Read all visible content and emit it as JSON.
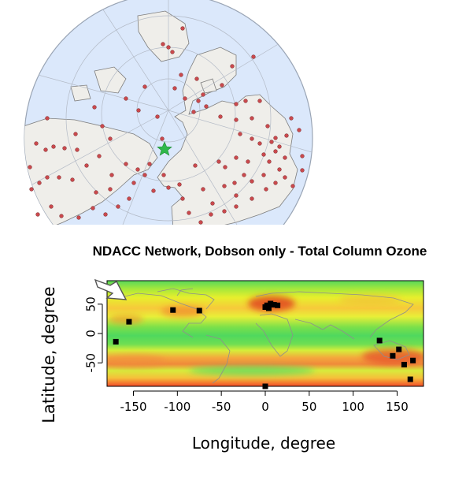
{
  "map_title": "NDACC Network, Dobson only - Total Column Ozone",
  "colors": {
    "ocean": "#dbe8fb",
    "land": "#efeeea",
    "station_dot": "#c9494d",
    "highlight_star": "#2fb84a",
    "marker": "#000000"
  },
  "chart_data": {
    "type": "scatter",
    "title": "NDACC Network, Dobson only - Total Column Ozone",
    "xlabel": "Longitude, degree",
    "ylabel": "Latitude, degree",
    "xlim": [
      -180,
      180
    ],
    "ylim": [
      -90,
      90
    ],
    "x_ticks": [
      -150,
      -100,
      -50,
      0,
      50,
      100,
      150
    ],
    "y_ticks": [
      50,
      0,
      -50
    ],
    "stations": [
      {
        "lon": -155,
        "lat": 20
      },
      {
        "lon": -105,
        "lat": 40
      },
      {
        "lon": -75,
        "lat": 39
      },
      {
        "lon": -170,
        "lat": -14
      },
      {
        "lon": 0,
        "lat": 45
      },
      {
        "lon": 2,
        "lat": 48
      },
      {
        "lon": 6,
        "lat": 51
      },
      {
        "lon": 10,
        "lat": 49
      },
      {
        "lon": 14,
        "lat": 48
      },
      {
        "lon": 4,
        "lat": 43
      },
      {
        "lon": 130,
        "lat": -12
      },
      {
        "lon": 152,
        "lat": -27
      },
      {
        "lon": 145,
        "lat": -38
      },
      {
        "lon": 158,
        "lat": -53
      },
      {
        "lon": 168,
        "lat": -46
      },
      {
        "lon": 165,
        "lat": -78
      },
      {
        "lon": 0,
        "lat": -90
      }
    ],
    "grid": false,
    "colormap": "ozone column: green (low) to yellow to red (high)"
  }
}
